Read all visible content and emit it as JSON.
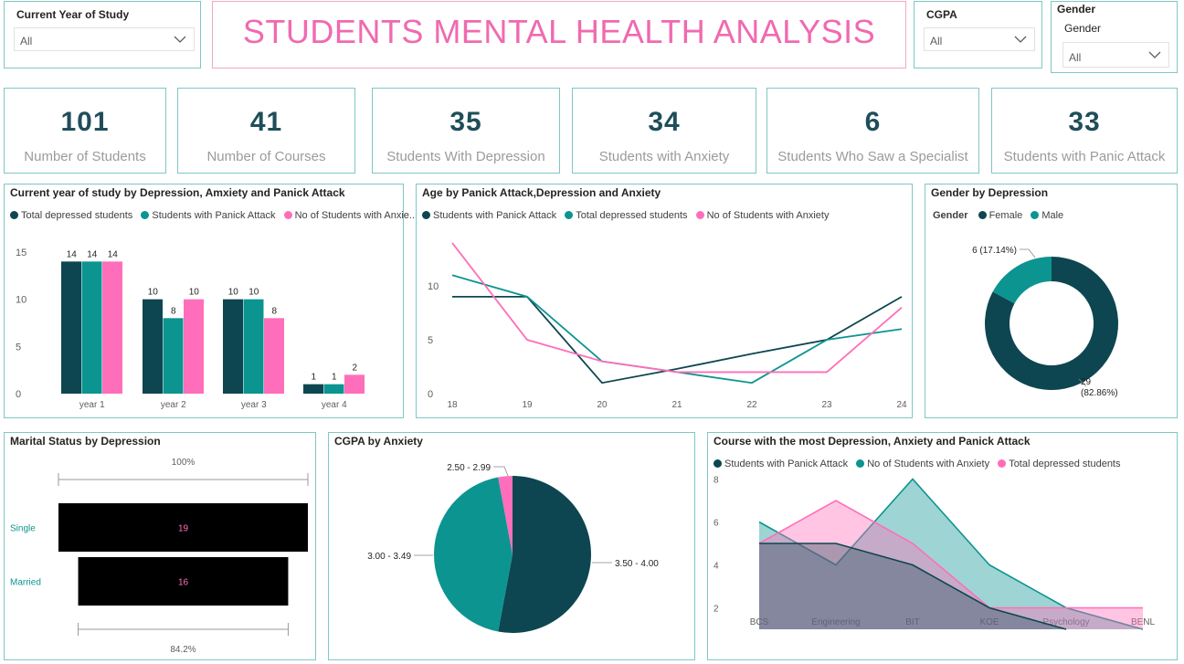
{
  "colors": {
    "dark": "#0d4650",
    "teal": "#0c9491",
    "pink": "#ff6eba",
    "border": "#7fc8c2",
    "title_pink": "#f06ab0"
  },
  "slicers": {
    "year": {
      "title": "Current Year of Study",
      "value": "All"
    },
    "cgpa": {
      "title": "CGPA",
      "value": "All"
    },
    "gender": {
      "title": "Gender",
      "sub": "Gender",
      "value": "All"
    }
  },
  "main_title": "STUDENTS MENTAL HEALTH ANALYSIS",
  "kpis": [
    {
      "value": "101",
      "label": "Number of Students"
    },
    {
      "value": "41",
      "label": "Number of Courses"
    },
    {
      "value": "35",
      "label": "Students With Depression"
    },
    {
      "value": "34",
      "label": "Students with Anxiety"
    },
    {
      "value": "6",
      "label": "Students Who Saw a Specialist"
    },
    {
      "value": "33",
      "label": "Students with Panic Attack"
    }
  ],
  "charts": {
    "year_chart": {
      "title": "Current year of study by Depression, Amxiety and Panick Attack",
      "legend": [
        "Total depressed students",
        "Students with Panick Attack",
        "No of Students with Anxie..."
      ]
    },
    "age_chart": {
      "title": "Age by Panick Attack,Depression and Anxiety",
      "legend": [
        "Students with Panick Attack",
        "Total depressed students",
        "No of Students with Anxiety"
      ]
    },
    "gender_chart": {
      "title": "Gender by Depression",
      "legend_title": "Gender",
      "legend": [
        "Female",
        "Male"
      ],
      "labels": {
        "male": "6 (17.14%)",
        "female_count": "29",
        "female_pct": "(82.86%)"
      }
    },
    "marital_chart": {
      "title": "Marital Status by Depression",
      "top_pct": "100%",
      "bottom_pct": "84.2%"
    },
    "cgpa_chart": {
      "title": "CGPA by Anxiety"
    },
    "course_chart": {
      "title": "Course with the most Depression, Anxiety and Panick Attack",
      "legend": [
        "Students with Panick Attack",
        "No of Students with Anxiety",
        "Total depressed students"
      ]
    }
  },
  "chart_data": [
    {
      "type": "bar",
      "categories": [
        "year 1",
        "year 2",
        "year 3",
        "year 4"
      ],
      "series": [
        {
          "name": "Total depressed students",
          "values": [
            14,
            10,
            10,
            1
          ]
        },
        {
          "name": "Students with Panick Attack",
          "values": [
            14,
            8,
            10,
            1
          ]
        },
        {
          "name": "No of Students with Anxie...",
          "values": [
            14,
            10,
            8,
            2
          ]
        }
      ],
      "yticks": [
        0,
        5,
        10,
        15
      ],
      "ylim": [
        0,
        15
      ]
    },
    {
      "type": "line",
      "x": [
        18,
        19,
        20,
        21,
        22,
        23,
        24
      ],
      "series": [
        {
          "name": "Students with Panick Attack",
          "values": [
            9,
            9,
            1,
            2.3,
            3.7,
            5,
            9
          ]
        },
        {
          "name": "Total depressed students",
          "values": [
            11,
            9,
            3,
            2,
            1,
            5,
            6
          ]
        },
        {
          "name": "No of Students with Anxiety",
          "values": [
            14,
            5,
            3,
            2,
            2,
            2,
            8
          ]
        }
      ],
      "yticks": [
        0,
        5,
        10
      ],
      "ylim": [
        0,
        14.5
      ]
    },
    {
      "type": "pie",
      "categories": [
        "Female",
        "Male"
      ],
      "values": [
        29,
        6
      ]
    },
    {
      "type": "bar",
      "categories": [
        "Single",
        "Married"
      ],
      "values": [
        19,
        16
      ]
    },
    {
      "type": "pie",
      "categories": [
        "3.50 - 4.00",
        "3.00 - 3.49",
        "2.50 - 2.99"
      ],
      "values": [
        18,
        15,
        1
      ]
    },
    {
      "type": "area",
      "categories": [
        "BCS",
        "Engineering",
        "BIT",
        "KOE",
        "Psychology",
        "BENL"
      ],
      "series": [
        {
          "name": "Students with Panick Attack",
          "values": [
            5,
            5,
            4,
            2,
            1,
            null
          ]
        },
        {
          "name": "No of Students with Anxiety",
          "values": [
            6,
            4,
            8,
            4,
            2,
            1
          ]
        },
        {
          "name": "Total depressed students",
          "values": [
            5,
            7,
            5,
            2,
            2,
            2
          ]
        }
      ],
      "yticks": [
        2,
        4,
        6,
        8
      ],
      "ylim": [
        1,
        8.5
      ]
    }
  ]
}
